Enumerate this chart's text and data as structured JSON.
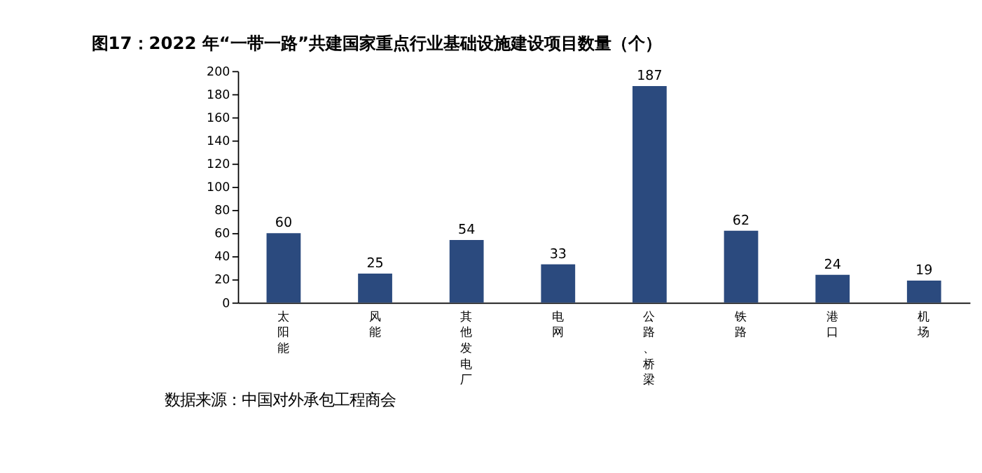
{
  "chart_data": {
    "type": "bar",
    "title": "图17：2022 年“一带一路”共建国家重点行业基础设施建设项目数量（个）",
    "categories": [
      "太阳能",
      "风能",
      "其他发电厂",
      "电网",
      "公路、桥梁",
      "铁路",
      "港口",
      "机场"
    ],
    "values": [
      60,
      25,
      54,
      33,
      187,
      62,
      24,
      19
    ],
    "color": "#2b4a7e",
    "ylim": [
      0,
      200
    ],
    "yticks": [
      0,
      20,
      40,
      60,
      80,
      100,
      120,
      140,
      160,
      180,
      200
    ],
    "grid": false,
    "data_labels": true,
    "annotations": [
      "数据来源：中国对外承包工程商会"
    ]
  }
}
